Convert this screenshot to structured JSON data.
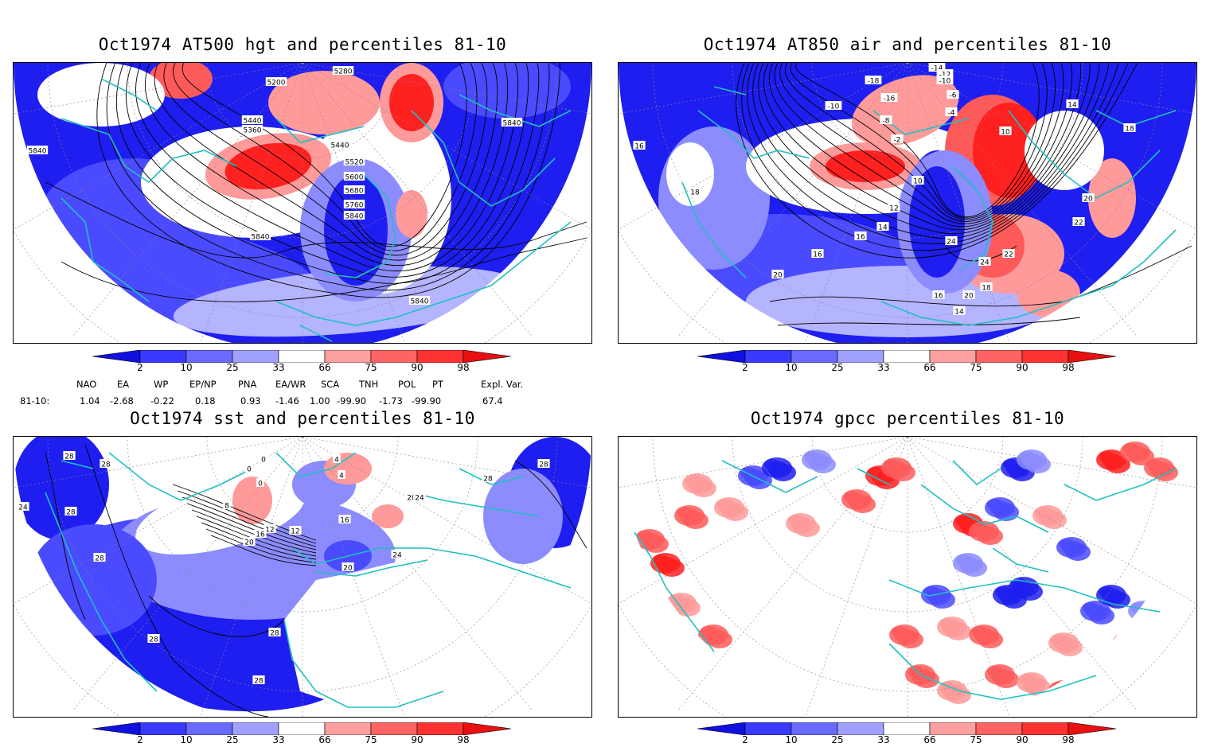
{
  "panels": [
    {
      "title": "Oct1974 AT500 hgt and percentiles 81-10",
      "contour_labels": [
        "5200",
        "5280",
        "5360",
        "5440",
        "5440",
        "5520",
        "5600",
        "5680",
        "5760",
        "5840",
        "5840",
        "5840",
        "5840",
        "5840"
      ]
    },
    {
      "title": "Oct1974 AT850 air and percentiles 81-10",
      "contour_labels": [
        "-14",
        "-12",
        "-10",
        "-18",
        "-16",
        "-6",
        "-4",
        "-10",
        "-8",
        "-2",
        "10",
        "14",
        "18",
        "16",
        "18",
        "20",
        "22",
        "10",
        "12",
        "14",
        "16",
        "16",
        "20",
        "24",
        "24",
        "22",
        "20",
        "18",
        "16",
        "14"
      ]
    },
    {
      "title": "Oct1974 sst and percentiles 81-10",
      "contour_labels": [
        "28",
        "28",
        "24",
        "28",
        "28",
        "28",
        "28",
        "0",
        "0",
        "0",
        "4",
        "4",
        "8",
        "12",
        "16",
        "20",
        "12",
        "16",
        "20",
        "24",
        "20",
        "24",
        "28",
        "28",
        "28"
      ]
    },
    {
      "title": "Oct1974 gpcc percentiles 81-10",
      "contour_labels": []
    }
  ],
  "colorbar": {
    "ticks": [
      "2",
      "10",
      "25",
      "33",
      "66",
      "75",
      "90",
      "98"
    ],
    "colors": [
      "#1010e0",
      "#3a3aff",
      "#6a6aff",
      "#a0a0ff",
      "#ffffff",
      "#ffa0a0",
      "#ff6464",
      "#ff3232",
      "#e81010"
    ]
  },
  "indices": {
    "headers": [
      "NAO",
      "EA",
      "WP",
      "EP/NP",
      "PNA",
      "EA/WR",
      "SCA",
      "TNH",
      "POL",
      "PT",
      "Expl. Var."
    ],
    "row_label": "81-10:",
    "values": [
      "1.04",
      "-2.68",
      "-0.22",
      "0.18",
      "0.93",
      "-1.46",
      "1.00",
      "-99.90",
      "-1.73",
      "-99.90",
      "67.4"
    ]
  },
  "colors": {
    "coast": "#20c0c0",
    "contour": "#000000"
  }
}
